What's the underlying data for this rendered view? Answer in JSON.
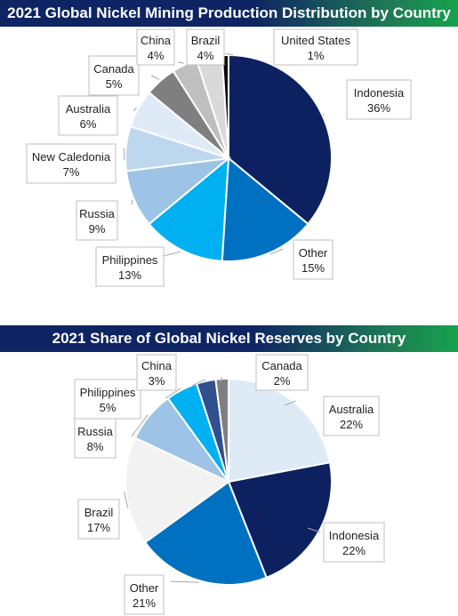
{
  "chart_data": [
    {
      "type": "pie",
      "title": "2021 Global Nickel Mining Production Distribution by Country",
      "start_at_top": true,
      "direction": "clockwise",
      "slices": [
        {
          "label": "Indonesia",
          "value": 36,
          "display": "36%",
          "color": "#0d2160"
        },
        {
          "label": "Other",
          "value": 15,
          "display": "15%",
          "color": "#0070c0"
        },
        {
          "label": "Philippines",
          "value": 13,
          "display": "13%",
          "color": "#00b0f0"
        },
        {
          "label": "Russia",
          "value": 9,
          "display": "9%",
          "color": "#9dc3e6"
        },
        {
          "label": "New Caledonia",
          "value": 7,
          "display": "7%",
          "color": "#bdd7ee"
        },
        {
          "label": "Australia",
          "value": 6,
          "display": "6%",
          "color": "#deebf7"
        },
        {
          "label": "Canada",
          "value": 5,
          "display": "5%",
          "color": "#7f7f7f"
        },
        {
          "label": "China",
          "value": 4,
          "display": "4%",
          "color": "#bfbfbf"
        },
        {
          "label": "Brazil",
          "value": 4,
          "display": "4%",
          "color": "#d9d9d9"
        },
        {
          "label": "United States",
          "value": 1,
          "display": "1%",
          "color": "#0d0d0d"
        }
      ]
    },
    {
      "type": "pie",
      "title": "2021 Share of Global Nickel Reserves by Country",
      "start_at_top": true,
      "direction": "clockwise",
      "slices": [
        {
          "label": "Australia",
          "value": 22,
          "display": "22%",
          "color": "#deebf7"
        },
        {
          "label": "Indonesia",
          "value": 22,
          "display": "22%",
          "color": "#0d2160"
        },
        {
          "label": "Other",
          "value": 21,
          "display": "21%",
          "color": "#0070c0"
        },
        {
          "label": "Brazil",
          "value": 17,
          "display": "17%",
          "color": "#f2f2f2"
        },
        {
          "label": "Russia",
          "value": 8,
          "display": "8%",
          "color": "#9dc3e6"
        },
        {
          "label": "Philippines",
          "value": 5,
          "display": "5%",
          "color": "#00b0f0"
        },
        {
          "label": "China",
          "value": 3,
          "display": "3%",
          "color": "#2f4f8f"
        },
        {
          "label": "Canada",
          "value": 2,
          "display": "2%",
          "color": "#7f7f7f"
        }
      ]
    }
  ]
}
